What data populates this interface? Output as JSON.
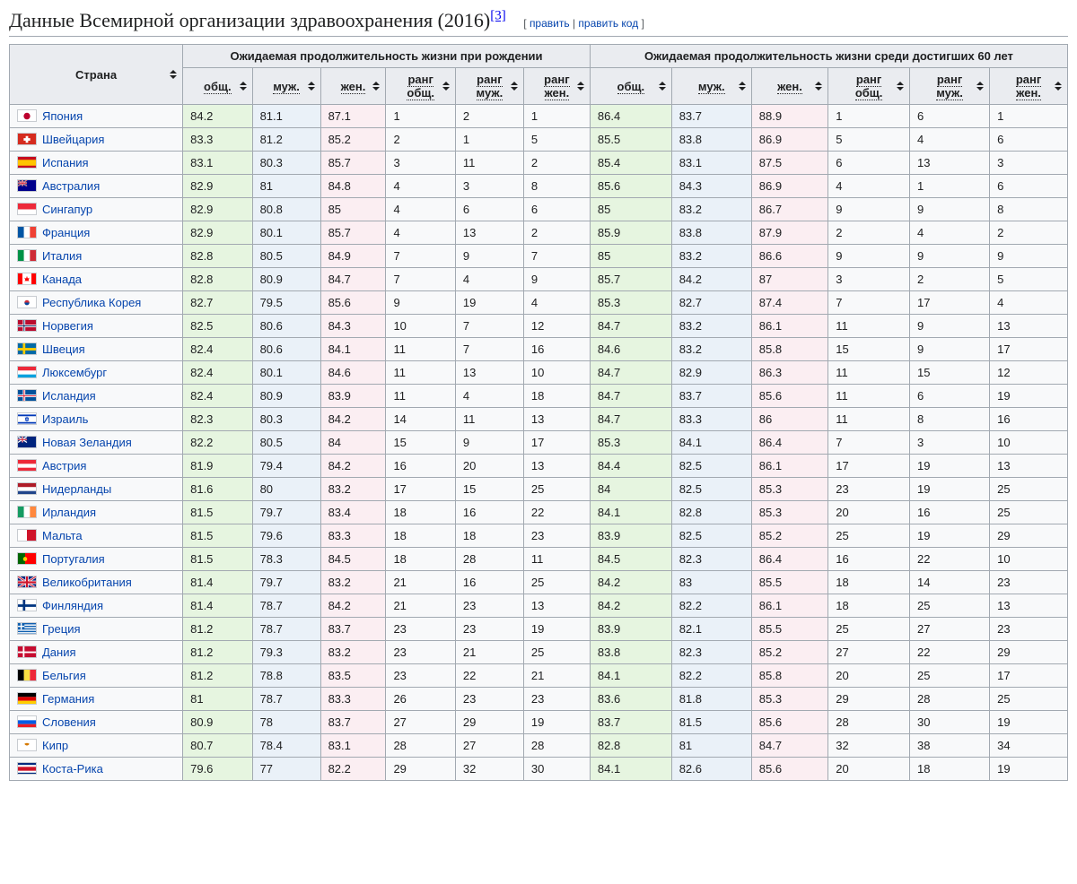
{
  "heading": {
    "title": "Данные Всемирной организации здравоохранения (2016)",
    "ref": "[3]",
    "edit_open": "[",
    "edit_label": "править",
    "edit_sep": " | ",
    "editcode_label": "править код",
    "edit_close": "]"
  },
  "columns": {
    "country": "Страна",
    "group_birth": "Ожидаемая продолжительность жизни при рождении",
    "group_60": "Ожидаемая продолжительность жизни среди достигших 60 лет",
    "total": "общ.",
    "male": "муж.",
    "female": "жен.",
    "rank_total": "ранг общ.",
    "rank_male": "ранг муж.",
    "rank_female": "ранг жен."
  },
  "colors": {
    "header_bg": "#eaecf0",
    "border": "#a2a9b1",
    "link": "#0645ad",
    "green": "#e6f5e0",
    "blue": "#eaf1f8",
    "pink": "#fbeef2"
  },
  "flags": {
    "Япония": "data:image/svg+xml;utf8,<svg xmlns='http://www.w3.org/2000/svg' viewBox='0 0 22 14'><rect width='22' height='14' fill='white'/><circle cx='11' cy='7' r='4' fill='%23bc002d'/></svg>",
    "Швейцария": "data:image/svg+xml;utf8,<svg xmlns='http://www.w3.org/2000/svg' viewBox='0 0 22 14'><rect width='22' height='14' fill='%23d52b1e'/><rect x='9.5' y='3' width='3' height='8' fill='white'/><rect x='7' y='5.5' width='8' height='3' fill='white'/></svg>",
    "Испания": "data:image/svg+xml;utf8,<svg xmlns='http://www.w3.org/2000/svg' viewBox='0 0 22 14'><rect width='22' height='14' fill='%23c60b1e'/><rect y='3.5' width='22' height='7' fill='%23ffc400'/></svg>",
    "Австралия": "data:image/svg+xml;utf8,<svg xmlns='http://www.w3.org/2000/svg' viewBox='0 0 22 14'><rect width='22' height='14' fill='%2300008B'/><rect width='11' height='7' fill='%2300247d'/><path d='M0 0L11 7M11 0L0 7' stroke='white' stroke-width='1.4'/><path d='M0 0L11 7M11 0L0 7' stroke='%23cf142b' stroke-width='0.7'/><path d='M5.5 0V7M0 3.5H11' stroke='white' stroke-width='2'/><path d='M5.5 0V7M0 3.5H11' stroke='%23cf142b' stroke-width='1'/></svg>",
    "Сингапур": "data:image/svg+xml;utf8,<svg xmlns='http://www.w3.org/2000/svg' viewBox='0 0 22 14'><rect width='22' height='7' fill='%23ed2939'/><rect y='7' width='22' height='7' fill='white'/></svg>",
    "Франция": "data:image/svg+xml;utf8,<svg xmlns='http://www.w3.org/2000/svg' viewBox='0 0 22 14'><rect width='7.33' height='14' fill='%230055a4'/><rect x='7.33' width='7.33' height='14' fill='white'/><rect x='14.66' width='7.34' height='14' fill='%23ef4135'/></svg>",
    "Италия": "data:image/svg+xml;utf8,<svg xmlns='http://www.w3.org/2000/svg' viewBox='0 0 22 14'><rect width='7.33' height='14' fill='%23009246'/><rect x='7.33' width='7.33' height='14' fill='white'/><rect x='14.66' width='7.34' height='14' fill='%23ce2b37'/></svg>",
    "Канада": "data:image/svg+xml;utf8,<svg xmlns='http://www.w3.org/2000/svg' viewBox='0 0 22 14'><rect width='22' height='14' fill='white'/><rect width='5.5' height='14' fill='%23ff0000'/><rect x='16.5' width='5.5' height='14' fill='%23ff0000'/><path d='M11 3L12 6L14 5L13 8L14 9L11 9L11 11L11 9L8 9L9 8L8 5L10 6Z' fill='%23ff0000'/></svg>",
    "Республика Корея": "data:image/svg+xml;utf8,<svg xmlns='http://www.w3.org/2000/svg' viewBox='0 0 22 14'><rect width='22' height='14' fill='white'/><circle cx='11' cy='7' r='3' fill='%23cd2e3a'/><path d='M8 7a3 3 0 0 0 6 0' fill='%230047a0'/></svg>",
    "Норвегия": "data:image/svg+xml;utf8,<svg xmlns='http://www.w3.org/2000/svg' viewBox='0 0 22 14'><rect width='22' height='14' fill='%23ba0c2f'/><rect x='6' width='3' height='14' fill='white'/><rect y='5.5' width='22' height='3' fill='white'/><rect x='7' width='1' height='14' fill='%2300205b'/><rect y='6.5' width='22' height='1' fill='%2300205b'/></svg>",
    "Швеция": "data:image/svg+xml;utf8,<svg xmlns='http://www.w3.org/2000/svg' viewBox='0 0 22 14'><rect width='22' height='14' fill='%23006aa7'/><rect x='6' width='3' height='14' fill='%23fecc00'/><rect y='5.5' width='22' height='3' fill='%23fecc00'/></svg>",
    "Люксембург": "data:image/svg+xml;utf8,<svg xmlns='http://www.w3.org/2000/svg' viewBox='0 0 22 14'><rect width='22' height='4.67' fill='%23ed2939'/><rect y='4.67' width='22' height='4.67' fill='white'/><rect y='9.33' width='22' height='4.67' fill='%2300a1de'/></svg>",
    "Исландия": "data:image/svg+xml;utf8,<svg xmlns='http://www.w3.org/2000/svg' viewBox='0 0 22 14'><rect width='22' height='14' fill='%2302529c'/><rect x='6' width='3' height='14' fill='white'/><rect y='5.5' width='22' height='3' fill='white'/><rect x='7' width='1' height='14' fill='%23dc1e35'/><rect y='6.5' width='22' height='1' fill='%23dc1e35'/></svg>",
    "Израиль": "data:image/svg+xml;utf8,<svg xmlns='http://www.w3.org/2000/svg' viewBox='0 0 22 14'><rect width='22' height='14' fill='white'/><rect y='1.5' width='22' height='2' fill='%230038b8'/><rect y='10.5' width='22' height='2' fill='%230038b8'/><path d='M11 4.5L13 8.5L9 8.5Z M11 9.5L9 5.5L13 5.5Z' fill='none' stroke='%230038b8' stroke-width='0.8'/></svg>",
    "Новая Зеландия": "data:image/svg+xml;utf8,<svg xmlns='http://www.w3.org/2000/svg' viewBox='0 0 22 14'><rect width='22' height='14' fill='%2300247d'/><rect width='11' height='7' fill='%2300247d'/><path d='M0 0L11 7M11 0L0 7' stroke='white' stroke-width='1.4'/><path d='M5.5 0V7M0 3.5H11' stroke='white' stroke-width='2'/><path d='M5.5 0V7M0 3.5H11' stroke='%23cf142b' stroke-width='1'/></svg>",
    "Австрия": "data:image/svg+xml;utf8,<svg xmlns='http://www.w3.org/2000/svg' viewBox='0 0 22 14'><rect width='22' height='14' fill='%23ed2939'/><rect y='4.67' width='22' height='4.67' fill='white'/></svg>",
    "Нидерланды": "data:image/svg+xml;utf8,<svg xmlns='http://www.w3.org/2000/svg' viewBox='0 0 22 14'><rect width='22' height='4.67' fill='%23ae1c28'/><rect y='4.67' width='22' height='4.67' fill='white'/><rect y='9.33' width='22' height='4.67' fill='%2321468b'/></svg>",
    "Ирландия": "data:image/svg+xml;utf8,<svg xmlns='http://www.w3.org/2000/svg' viewBox='0 0 22 14'><rect width='7.33' height='14' fill='%23169b62'/><rect x='7.33' width='7.33' height='14' fill='white'/><rect x='14.66' width='7.34' height='14' fill='%23ff883e'/></svg>",
    "Мальта": "data:image/svg+xml;utf8,<svg xmlns='http://www.w3.org/2000/svg' viewBox='0 0 22 14'><rect width='11' height='14' fill='white'/><rect x='11' width='11' height='14' fill='%23cf142b'/></svg>",
    "Португалия": "data:image/svg+xml;utf8,<svg xmlns='http://www.w3.org/2000/svg' viewBox='0 0 22 14'><rect width='8.8' height='14' fill='%23006600'/><rect x='8.8' width='13.2' height='14' fill='%23ff0000'/><circle cx='8.8' cy='7' r='2.5' fill='%23ffcf00'/></svg>",
    "Великобритания": "data:image/svg+xml;utf8,<svg xmlns='http://www.w3.org/2000/svg' viewBox='0 0 22 14'><rect width='22' height='14' fill='%2300247d'/><path d='M0 0L22 14M22 0L0 14' stroke='white' stroke-width='2.8'/><path d='M0 0L22 14M22 0L0 14' stroke='%23cf142b' stroke-width='1.2'/><path d='M11 0V14M0 7H22' stroke='white' stroke-width='4'/><path d='M11 0V14M0 7H22' stroke='%23cf142b' stroke-width='2.4'/></svg>",
    "Финляндия": "data:image/svg+xml;utf8,<svg xmlns='http://www.w3.org/2000/svg' viewBox='0 0 22 14'><rect width='22' height='14' fill='white'/><rect x='6' width='3' height='14' fill='%23003580'/><rect y='5.5' width='22' height='3' fill='%23003580'/></svg>",
    "Греция": "data:image/svg+xml;utf8,<svg xmlns='http://www.w3.org/2000/svg' viewBox='0 0 22 14'><rect width='22' height='14' fill='%230d5eaf'/><rect y='1.56' width='22' height='1.56' fill='white'/><rect y='4.67' width='22' height='1.56' fill='white'/><rect y='7.78' width='22' height='1.56' fill='white'/><rect y='10.89' width='22' height='1.56' fill='white'/><rect width='8' height='7.78' fill='%230d5eaf'/><rect x='3.2' width='1.6' height='7.78' fill='white'/><rect y='3.1' width='8' height='1.56' fill='white'/></svg>",
    "Дания": "data:image/svg+xml;utf8,<svg xmlns='http://www.w3.org/2000/svg' viewBox='0 0 22 14'><rect width='22' height='14' fill='%23c60c30'/><rect x='6' width='2' height='14' fill='white'/><rect y='6' width='22' height='2' fill='white'/></svg>",
    "Бельгия": "data:image/svg+xml;utf8,<svg xmlns='http://www.w3.org/2000/svg' viewBox='0 0 22 14'><rect width='7.33' height='14' fill='black'/><rect x='7.33' width='7.33' height='14' fill='%23fae042'/><rect x='14.66' width='7.34' height='14' fill='%23ed2939'/></svg>",
    "Германия": "data:image/svg+xml;utf8,<svg xmlns='http://www.w3.org/2000/svg' viewBox='0 0 22 14'><rect width='22' height='4.67' fill='black'/><rect y='4.67' width='22' height='4.67' fill='%23dd0000'/><rect y='9.33' width='22' height='4.67' fill='%23ffce00'/></svg>",
    "Словения": "data:image/svg+xml;utf8,<svg xmlns='http://www.w3.org/2000/svg' viewBox='0 0 22 14'><rect width='22' height='4.67' fill='white'/><rect y='4.67' width='22' height='4.67' fill='%23005ce5'/><rect y='9.33' width='22' height='4.67' fill='%23ed1c24'/></svg>",
    "Кипр": "data:image/svg+xml;utf8,<svg xmlns='http://www.w3.org/2000/svg' viewBox='0 0 22 14'><rect width='22' height='14' fill='white'/><path d='M8 5Q11 3 14 5Q13 7 11 7Q9 7 8 5' fill='%23d57800'/></svg>",
    "Коста-Рика": "data:image/svg+xml;utf8,<svg xmlns='http://www.w3.org/2000/svg' viewBox='0 0 22 14'><rect width='22' height='14' fill='%23002b7f'/><rect y='2.33' width='22' height='9.33' fill='white'/><rect y='4.67' width='22' height='4.67' fill='%23ce1126'/></svg>"
  },
  "rows": [
    {
      "country": "Япония",
      "b": [
        "84.2",
        "81.1",
        "87.1",
        "1",
        "2",
        "1"
      ],
      "s": [
        "86.4",
        "83.7",
        "88.9",
        "1",
        "6",
        "1"
      ]
    },
    {
      "country": "Швейцария",
      "b": [
        "83.3",
        "81.2",
        "85.2",
        "2",
        "1",
        "5"
      ],
      "s": [
        "85.5",
        "83.8",
        "86.9",
        "5",
        "4",
        "6"
      ]
    },
    {
      "country": "Испания",
      "b": [
        "83.1",
        "80.3",
        "85.7",
        "3",
        "11",
        "2"
      ],
      "s": [
        "85.4",
        "83.1",
        "87.5",
        "6",
        "13",
        "3"
      ]
    },
    {
      "country": "Австралия",
      "b": [
        "82.9",
        "81",
        "84.8",
        "4",
        "3",
        "8"
      ],
      "s": [
        "85.6",
        "84.3",
        "86.9",
        "4",
        "1",
        "6"
      ]
    },
    {
      "country": "Сингапур",
      "b": [
        "82.9",
        "80.8",
        "85",
        "4",
        "6",
        "6"
      ],
      "s": [
        "85",
        "83.2",
        "86.7",
        "9",
        "9",
        "8"
      ]
    },
    {
      "country": "Франция",
      "b": [
        "82.9",
        "80.1",
        "85.7",
        "4",
        "13",
        "2"
      ],
      "s": [
        "85.9",
        "83.8",
        "87.9",
        "2",
        "4",
        "2"
      ]
    },
    {
      "country": "Италия",
      "b": [
        "82.8",
        "80.5",
        "84.9",
        "7",
        "9",
        "7"
      ],
      "s": [
        "85",
        "83.2",
        "86.6",
        "9",
        "9",
        "9"
      ]
    },
    {
      "country": "Канада",
      "b": [
        "82.8",
        "80.9",
        "84.7",
        "7",
        "4",
        "9"
      ],
      "s": [
        "85.7",
        "84.2",
        "87",
        "3",
        "2",
        "5"
      ]
    },
    {
      "country": "Республика Корея",
      "b": [
        "82.7",
        "79.5",
        "85.6",
        "9",
        "19",
        "4"
      ],
      "s": [
        "85.3",
        "82.7",
        "87.4",
        "7",
        "17",
        "4"
      ]
    },
    {
      "country": "Норвегия",
      "b": [
        "82.5",
        "80.6",
        "84.3",
        "10",
        "7",
        "12"
      ],
      "s": [
        "84.7",
        "83.2",
        "86.1",
        "11",
        "9",
        "13"
      ]
    },
    {
      "country": "Швеция",
      "b": [
        "82.4",
        "80.6",
        "84.1",
        "11",
        "7",
        "16"
      ],
      "s": [
        "84.6",
        "83.2",
        "85.8",
        "15",
        "9",
        "17"
      ]
    },
    {
      "country": "Люксембург",
      "b": [
        "82.4",
        "80.1",
        "84.6",
        "11",
        "13",
        "10"
      ],
      "s": [
        "84.7",
        "82.9",
        "86.3",
        "11",
        "15",
        "12"
      ]
    },
    {
      "country": "Исландия",
      "b": [
        "82.4",
        "80.9",
        "83.9",
        "11",
        "4",
        "18"
      ],
      "s": [
        "84.7",
        "83.7",
        "85.6",
        "11",
        "6",
        "19"
      ]
    },
    {
      "country": "Израиль",
      "b": [
        "82.3",
        "80.3",
        "84.2",
        "14",
        "11",
        "13"
      ],
      "s": [
        "84.7",
        "83.3",
        "86",
        "11",
        "8",
        "16"
      ]
    },
    {
      "country": "Новая Зеландия",
      "b": [
        "82.2",
        "80.5",
        "84",
        "15",
        "9",
        "17"
      ],
      "s": [
        "85.3",
        "84.1",
        "86.4",
        "7",
        "3",
        "10"
      ]
    },
    {
      "country": "Австрия",
      "b": [
        "81.9",
        "79.4",
        "84.2",
        "16",
        "20",
        "13"
      ],
      "s": [
        "84.4",
        "82.5",
        "86.1",
        "17",
        "19",
        "13"
      ]
    },
    {
      "country": "Нидерланды",
      "b": [
        "81.6",
        "80",
        "83.2",
        "17",
        "15",
        "25"
      ],
      "s": [
        "84",
        "82.5",
        "85.3",
        "23",
        "19",
        "25"
      ]
    },
    {
      "country": "Ирландия",
      "b": [
        "81.5",
        "79.7",
        "83.4",
        "18",
        "16",
        "22"
      ],
      "s": [
        "84.1",
        "82.8",
        "85.3",
        "20",
        "16",
        "25"
      ]
    },
    {
      "country": "Мальта",
      "b": [
        "81.5",
        "79.6",
        "83.3",
        "18",
        "18",
        "23"
      ],
      "s": [
        "83.9",
        "82.5",
        "85.2",
        "25",
        "19",
        "29"
      ]
    },
    {
      "country": "Португалия",
      "b": [
        "81.5",
        "78.3",
        "84.5",
        "18",
        "28",
        "11"
      ],
      "s": [
        "84.5",
        "82.3",
        "86.4",
        "16",
        "22",
        "10"
      ]
    },
    {
      "country": "Великобритания",
      "b": [
        "81.4",
        "79.7",
        "83.2",
        "21",
        "16",
        "25"
      ],
      "s": [
        "84.2",
        "83",
        "85.5",
        "18",
        "14",
        "23"
      ]
    },
    {
      "country": "Финляндия",
      "b": [
        "81.4",
        "78.7",
        "84.2",
        "21",
        "23",
        "13"
      ],
      "s": [
        "84.2",
        "82.2",
        "86.1",
        "18",
        "25",
        "13"
      ]
    },
    {
      "country": "Греция",
      "b": [
        "81.2",
        "78.7",
        "83.7",
        "23",
        "23",
        "19"
      ],
      "s": [
        "83.9",
        "82.1",
        "85.5",
        "25",
        "27",
        "23"
      ]
    },
    {
      "country": "Дания",
      "b": [
        "81.2",
        "79.3",
        "83.2",
        "23",
        "21",
        "25"
      ],
      "s": [
        "83.8",
        "82.3",
        "85.2",
        "27",
        "22",
        "29"
      ]
    },
    {
      "country": "Бельгия",
      "b": [
        "81.2",
        "78.8",
        "83.5",
        "23",
        "22",
        "21"
      ],
      "s": [
        "84.1",
        "82.2",
        "85.8",
        "20",
        "25",
        "17"
      ]
    },
    {
      "country": "Германия",
      "b": [
        "81",
        "78.7",
        "83.3",
        "26",
        "23",
        "23"
      ],
      "s": [
        "83.6",
        "81.8",
        "85.3",
        "29",
        "28",
        "25"
      ]
    },
    {
      "country": "Словения",
      "b": [
        "80.9",
        "78",
        "83.7",
        "27",
        "29",
        "19"
      ],
      "s": [
        "83.7",
        "81.5",
        "85.6",
        "28",
        "30",
        "19"
      ]
    },
    {
      "country": "Кипр",
      "b": [
        "80.7",
        "78.4",
        "83.1",
        "28",
        "27",
        "28"
      ],
      "s": [
        "82.8",
        "81",
        "84.7",
        "32",
        "38",
        "34"
      ]
    },
    {
      "country": "Коста-Рика",
      "b": [
        "79.6",
        "77",
        "82.2",
        "29",
        "32",
        "30"
      ],
      "s": [
        "84.1",
        "82.6",
        "85.6",
        "20",
        "18",
        "19"
      ]
    }
  ]
}
